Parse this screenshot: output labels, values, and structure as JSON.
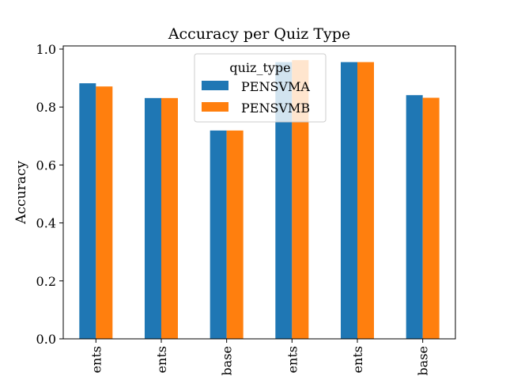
{
  "chart_data": {
    "type": "bar",
    "title": "Accuracy per Quiz Type",
    "xlabel": "",
    "ylabel": "Accuracy",
    "ylim": [
      0,
      1.0
    ],
    "yticks": [
      "0.0",
      "0.2",
      "0.4",
      "0.6",
      "0.8",
      "1.0"
    ],
    "categories": [
      "ents",
      "ents",
      "base",
      "ents",
      "ents",
      "base"
    ],
    "series": [
      {
        "name": "PENSVMA",
        "values": [
          0.882,
          0.831,
          0.719,
          0.955,
          0.955,
          0.841
        ]
      },
      {
        "name": "PENSVMB",
        "values": [
          0.871,
          0.831,
          0.719,
          0.962,
          0.955,
          0.832
        ]
      }
    ],
    "legend": {
      "title": "quiz_type",
      "placement": "upper-center"
    },
    "grid": false,
    "colors": [
      "#1f77b4",
      "#ff7f0e"
    ]
  }
}
